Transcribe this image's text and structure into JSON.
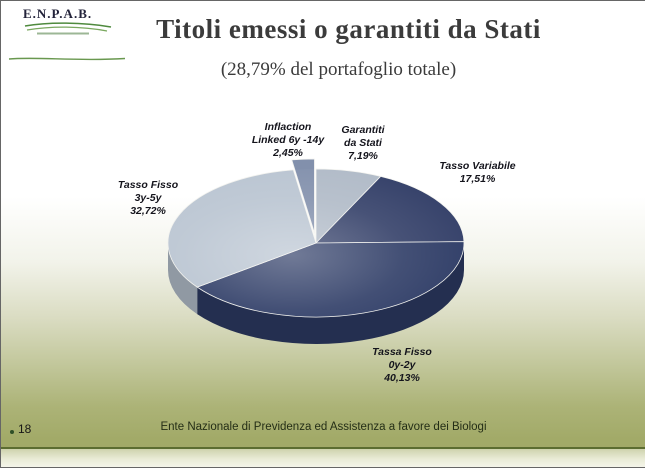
{
  "slide": {
    "logo_text": "E.N.P.A.B.",
    "title": "Titoli emessi o garantiti da Stati",
    "subtitle": "(28,79% del portafoglio totale)",
    "footer": "Ente Nazionale di Previdenza ed Assistenza a favore dei Biologi",
    "page_number": "18"
  },
  "chart_data": {
    "type": "pie",
    "style": "3d-exploded",
    "title": "Titoli emessi o garantiti da Stati",
    "subtitle": "(28,79% del portafoglio totale)",
    "unit": "percent",
    "legend_position": "labels-around-pie",
    "slices": [
      {
        "label": "Garantiti da Stati",
        "value": 7.19,
        "value_label": "7,19%",
        "color": "#b0bac7",
        "label_lines": [
          "Garantiti",
          "da Stati"
        ],
        "exploded": false
      },
      {
        "label": "Tasso Variabile",
        "value": 17.51,
        "value_label": "17,51%",
        "color": "#333f68",
        "label_lines": [
          "Tasso Variabile"
        ],
        "exploded": false
      },
      {
        "label": "Tassa Fisso 0y-2y",
        "value": 40.13,
        "value_label": "40,13%",
        "color": "#2e3c66",
        "label_lines": [
          "Tassa Fisso",
          "0y-2y"
        ],
        "exploded": false
      },
      {
        "label": "Tasso Fisso 3y-5y",
        "value": 32.72,
        "value_label": "32,72%",
        "color": "#b9c4d1",
        "label_lines": [
          "Tasso Fisso",
          "3y-5y"
        ],
        "exploded": false
      },
      {
        "label": "Inflaction Linked 6y -14y",
        "value": 2.45,
        "value_label": "2,45%",
        "color": "#8290ac",
        "label_lines": [
          "Inflaction",
          "Linked 6y -14y"
        ],
        "exploded": true
      }
    ]
  }
}
